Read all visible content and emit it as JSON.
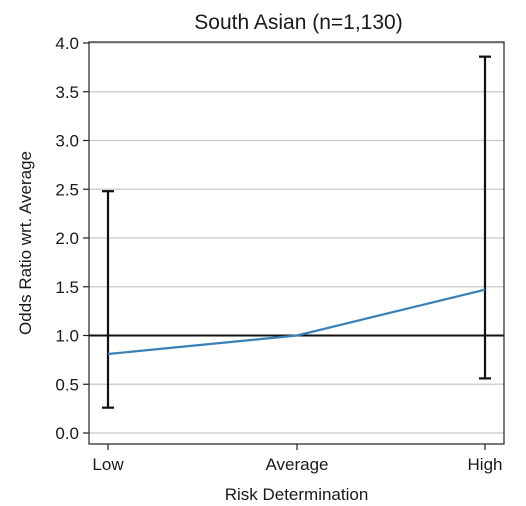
{
  "chart_data": {
    "type": "line",
    "title": "South Asian (n=1,130)",
    "xlabel": "Risk Determination",
    "ylabel": "Odds Ratio wrt. Average",
    "categories": [
      "Low",
      "Average",
      "High"
    ],
    "series": [
      {
        "values": [
          0.81,
          1.0,
          1.47
        ],
        "ci_low": [
          0.26,
          1.0,
          0.56
        ],
        "ci_high": [
          2.48,
          1.0,
          3.86
        ],
        "color": "#3a7fb8"
      }
    ],
    "reference_line": 1.0,
    "ylim": [
      0,
      4.0
    ],
    "yticks": [
      "0.0",
      "0.5",
      "1.0",
      "1.5",
      "2.0",
      "2.5",
      "3.0",
      "3.5",
      "4.0"
    ],
    "grid": "horizontal",
    "colors": {
      "series": "#3a7fb8",
      "errorbar": "#111111",
      "grid": "#c8c8c8",
      "reference": "#111111"
    }
  }
}
